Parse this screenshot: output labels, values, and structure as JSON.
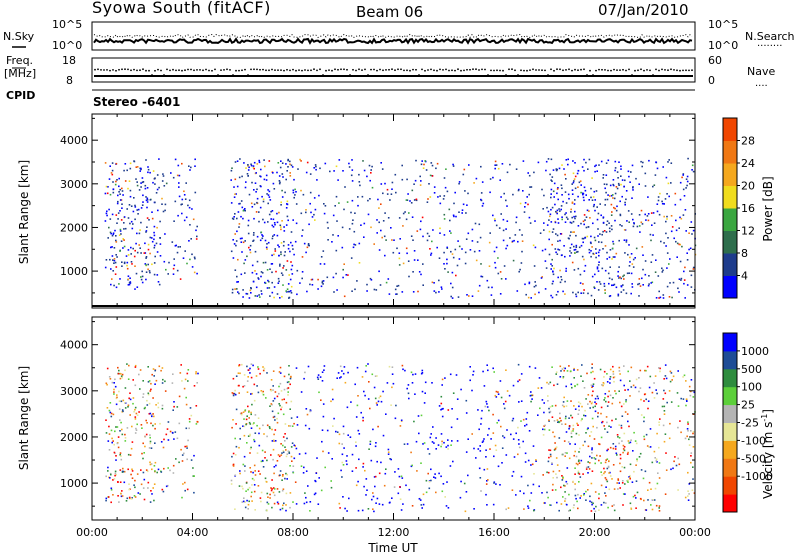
{
  "header": {
    "station": "Syowa South (fitACF)",
    "beam": "Beam 06",
    "date": "07/Jan/2010",
    "mode": "Stereo -6401"
  },
  "nsky_panel": {
    "left_label": "N.Sky",
    "left_ticks": [
      "10^5",
      "10^0"
    ],
    "right_label": "N.Search",
    "right_ticks": [
      "10^5",
      "10^0"
    ],
    "right_legend": "........"
  },
  "freq_panel": {
    "left_label": "Freq.",
    "left_unit": "[MHz]",
    "left_ticks": [
      "18",
      "8"
    ],
    "right_label": "Nave",
    "right_ticks": [
      "60",
      "0"
    ],
    "right_legend": "...."
  },
  "cpid_label": "CPID",
  "colors": {
    "axis": "#000000",
    "power_scale": [
      "#0000ff",
      "#1e3c8c",
      "#2e6e4c",
      "#3aa640",
      "#f0dc1e",
      "#f5a81e",
      "#f07814",
      "#f04600",
      "#ff0000"
    ],
    "velocity_scale": [
      "#0000ff",
      "#1e4c96",
      "#2e8c3e",
      "#5ccf3a",
      "#b4b4b4",
      "#e6e696",
      "#f5a81e",
      "#f07814",
      "#f04600",
      "#ff0000"
    ]
  },
  "chart_data": [
    {
      "type": "heatmap",
      "name": "power",
      "ylabel": "Slant Range [km]",
      "ylim": [
        200,
        4600
      ],
      "yticks": [
        "1000",
        "2000",
        "3000",
        "4000"
      ],
      "xlim_hours": [
        0,
        24
      ],
      "colorbar": {
        "label": "Power [dB]",
        "ticks": [
          "4",
          "8",
          "12",
          "16",
          "20",
          "24",
          "28"
        ],
        "range": [
          0,
          32
        ]
      }
    },
    {
      "type": "heatmap",
      "name": "velocity",
      "ylabel": "Slant Range [km]",
      "ylim": [
        200,
        4600
      ],
      "yticks": [
        "1000",
        "2000",
        "3000",
        "4000"
      ],
      "xlim_hours": [
        0,
        24
      ],
      "xticks": [
        "00:00",
        "04:00",
        "08:00",
        "12:00",
        "16:00",
        "20:00",
        "00:00"
      ],
      "xlabel": "Time UT",
      "colorbar": {
        "label": "Velocity [m s",
        "label_sup": "-1",
        "label_end": "]",
        "ticks": [
          "1000",
          "500",
          "100",
          "25",
          "-25",
          "-100",
          "-500",
          "-1000"
        ]
      }
    }
  ]
}
